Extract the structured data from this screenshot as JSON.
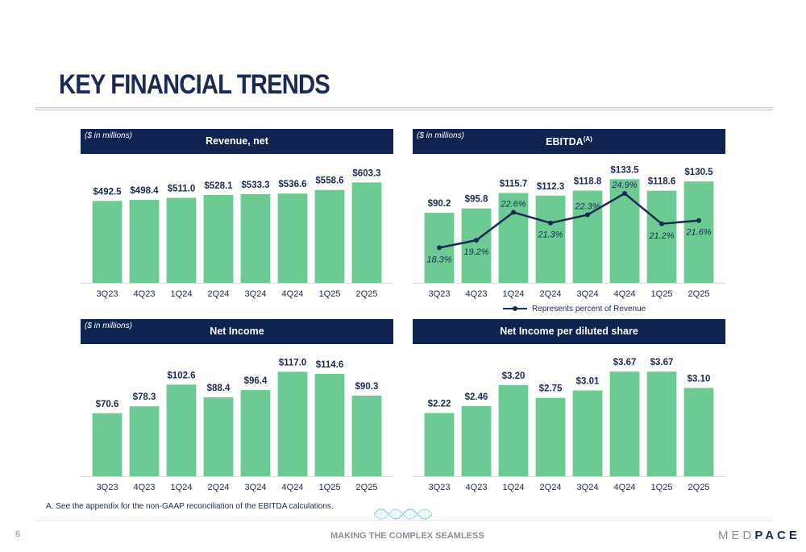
{
  "page": {
    "title": "KEY FINANCIAL TRENDS",
    "footnote": "A. See the appendix for the non-GAAP reconciliation of the EBITDA calculations.",
    "page_number": "6",
    "tagline": "MAKING THE COMPLEX SEAMLESS",
    "logo_text_a": "MED",
    "logo_text_b": "PACE",
    "legend_label": "Represents percent of Revenue"
  },
  "chart_data": [
    {
      "type": "bar",
      "title": "Revenue, net",
      "units_note": "($ in millions)",
      "categories": [
        "3Q23",
        "4Q23",
        "1Q24",
        "2Q24",
        "3Q24",
        "4Q24",
        "1Q25",
        "2Q25"
      ],
      "values": [
        492.5,
        498.4,
        511.0,
        528.1,
        533.3,
        536.6,
        558.6,
        603.3
      ],
      "labels": [
        "$492.5",
        "$498.4",
        "$511.0",
        "$528.1",
        "$533.3",
        "$536.6",
        "$558.6",
        "$603.3"
      ],
      "ylim": [
        0,
        620
      ],
      "colors": {
        "bar": "#6ccb93"
      }
    },
    {
      "type": "bar",
      "title": "EBITDA",
      "title_superscript": "(A)",
      "units_note": "($ in millions)",
      "categories": [
        "3Q23",
        "4Q23",
        "1Q24",
        "2Q24",
        "3Q24",
        "4Q24",
        "1Q25",
        "2Q25"
      ],
      "values": [
        90.2,
        95.8,
        115.7,
        112.3,
        118.8,
        133.5,
        118.6,
        130.5
      ],
      "labels": [
        "$90.2",
        "$95.8",
        "$115.7",
        "$112.3",
        "$118.8",
        "$133.5",
        "$118.6",
        "$130.5"
      ],
      "ylim": [
        0,
        138
      ],
      "line_series": {
        "name": "Represents percent of Revenue",
        "values": [
          18.3,
          19.2,
          22.6,
          21.3,
          22.3,
          24.9,
          21.2,
          21.6
        ],
        "labels": [
          "18.3%",
          "19.2%",
          "22.6%",
          "21.3%",
          "22.3%",
          "24.9%",
          "21.2%",
          "21.6%"
        ]
      },
      "colors": {
        "bar": "#6ccb93",
        "line": "#1b2a55"
      }
    },
    {
      "type": "bar",
      "title": "Net Income",
      "units_note": "($ in millions)",
      "categories": [
        "3Q23",
        "4Q23",
        "1Q24",
        "2Q24",
        "3Q24",
        "4Q24",
        "1Q25",
        "2Q25"
      ],
      "values": [
        70.6,
        78.3,
        102.6,
        88.4,
        96.4,
        117.0,
        114.6,
        90.3
      ],
      "labels": [
        "$70.6",
        "$78.3",
        "$102.6",
        "$88.4",
        "$96.4",
        "$117.0",
        "$114.6",
        "$90.3"
      ],
      "ylim": [
        0,
        120
      ],
      "colors": {
        "bar": "#6ccb93"
      }
    },
    {
      "type": "bar",
      "title": "Net Income per diluted share",
      "units_note": "",
      "categories": [
        "3Q23",
        "4Q23",
        "1Q24",
        "2Q24",
        "3Q24",
        "4Q24",
        "1Q25",
        "2Q25"
      ],
      "values": [
        2.22,
        2.46,
        3.2,
        2.75,
        3.01,
        3.67,
        3.67,
        3.1
      ],
      "labels": [
        "$2.22",
        "$2.46",
        "$3.20",
        "$2.75",
        "$3.01",
        "$3.67",
        "$3.67",
        "$3.10"
      ],
      "ylim": [
        0,
        3.76
      ],
      "colors": {
        "bar": "#6ccb93"
      }
    }
  ]
}
